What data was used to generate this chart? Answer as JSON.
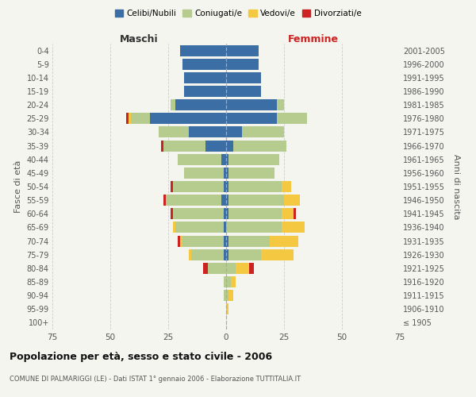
{
  "age_groups": [
    "100+",
    "95-99",
    "90-94",
    "85-89",
    "80-84",
    "75-79",
    "70-74",
    "65-69",
    "60-64",
    "55-59",
    "50-54",
    "45-49",
    "40-44",
    "35-39",
    "30-34",
    "25-29",
    "20-24",
    "15-19",
    "10-14",
    "5-9",
    "0-4"
  ],
  "birth_years": [
    "≤ 1905",
    "1906-1910",
    "1911-1915",
    "1916-1920",
    "1921-1925",
    "1926-1930",
    "1931-1935",
    "1936-1940",
    "1941-1945",
    "1946-1950",
    "1951-1955",
    "1956-1960",
    "1961-1965",
    "1966-1970",
    "1971-1975",
    "1976-1980",
    "1981-1985",
    "1986-1990",
    "1991-1995",
    "1996-2000",
    "2001-2005"
  ],
  "males": {
    "celibi": [
      0,
      0,
      0,
      0,
      0,
      1,
      1,
      1,
      1,
      2,
      1,
      1,
      2,
      9,
      16,
      33,
      22,
      18,
      18,
      19,
      20
    ],
    "coniugati": [
      0,
      0,
      1,
      1,
      8,
      14,
      18,
      21,
      22,
      24,
      22,
      17,
      19,
      18,
      13,
      8,
      2,
      0,
      0,
      0,
      0
    ],
    "vedovi": [
      0,
      0,
      0,
      0,
      0,
      1,
      1,
      1,
      0,
      0,
      0,
      0,
      0,
      0,
      0,
      1,
      0,
      0,
      0,
      0,
      0
    ],
    "divorziati": [
      0,
      0,
      0,
      0,
      2,
      0,
      1,
      0,
      1,
      1,
      1,
      0,
      0,
      1,
      0,
      1,
      0,
      0,
      0,
      0,
      0
    ]
  },
  "females": {
    "nubili": [
      0,
      0,
      0,
      0,
      0,
      1,
      1,
      0,
      1,
      1,
      1,
      1,
      1,
      3,
      7,
      22,
      22,
      15,
      15,
      14,
      14
    ],
    "coniugate": [
      0,
      0,
      1,
      2,
      4,
      14,
      18,
      24,
      23,
      24,
      23,
      20,
      22,
      23,
      18,
      13,
      3,
      0,
      0,
      0,
      0
    ],
    "vedove": [
      0,
      1,
      2,
      2,
      6,
      14,
      12,
      10,
      5,
      7,
      4,
      0,
      0,
      0,
      0,
      0,
      0,
      0,
      0,
      0,
      0
    ],
    "divorziate": [
      0,
      0,
      0,
      0,
      2,
      0,
      0,
      0,
      1,
      0,
      0,
      0,
      0,
      0,
      0,
      0,
      0,
      0,
      0,
      0,
      0
    ]
  },
  "colors": {
    "celibi": "#3b6ea5",
    "coniugati": "#b5cc8e",
    "vedovi": "#f5c842",
    "divorziati": "#cc2222"
  },
  "xlim": 75,
  "title": "Popolazione per età, sesso e stato civile - 2006",
  "subtitle": "COMUNE DI PALMARIGGI (LE) - Dati ISTAT 1° gennaio 2006 - Elaborazione TUTTITALIA.IT",
  "ylabel_left": "Fasce di età",
  "ylabel_right": "Anni di nascita",
  "xlabel_left": "Maschi",
  "xlabel_right": "Femmine",
  "bg_color": "#f5f5f0",
  "grid_color": "#cccccc"
}
